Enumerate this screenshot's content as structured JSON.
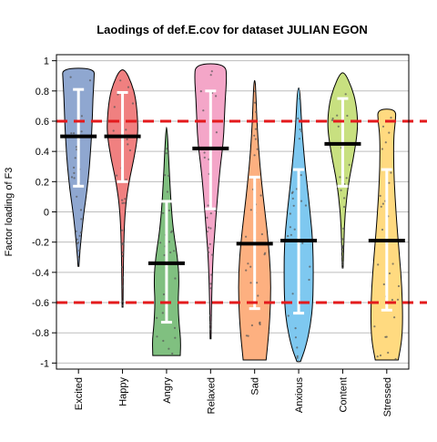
{
  "chart_data": {
    "type": "violin",
    "title": "Laodings of def.E.cov for dataset JULIAN EGON",
    "xlabel": "",
    "ylabel": "Factor loading of F3",
    "ylim": [
      -1.04,
      1.04
    ],
    "yticks": [
      1,
      0.8,
      0.6,
      0.4,
      0.2,
      0,
      -0.2,
      -0.4,
      -0.6,
      -0.8,
      -1
    ],
    "reference_lines": [
      0.6,
      -0.6
    ],
    "reference_line_color": "#e31a1c",
    "grid": "horizontal",
    "categories": [
      "Excited",
      "Happy",
      "Angry",
      "Relaxed",
      "Sad",
      "Anxious",
      "Content",
      "Stressed"
    ],
    "series": [
      {
        "label": "Excited",
        "color": "#8FA7D0",
        "mean": 0.5,
        "sd_low": 0.17,
        "sd_high": 0.81,
        "min": -0.36,
        "max": 0.95,
        "profile": [
          [
            -0.36,
            0.02
          ],
          [
            -0.25,
            0.07
          ],
          [
            -0.12,
            0.15
          ],
          [
            0.0,
            0.24
          ],
          [
            0.15,
            0.38
          ],
          [
            0.3,
            0.48
          ],
          [
            0.45,
            0.55
          ],
          [
            0.6,
            0.6
          ],
          [
            0.75,
            0.63
          ],
          [
            0.88,
            0.68
          ],
          [
            0.95,
            0.7
          ]
        ]
      },
      {
        "label": "Happy",
        "color": "#F08080",
        "mean": 0.5,
        "sd_low": 0.2,
        "sd_high": 0.79,
        "min": -0.63,
        "max": 0.94,
        "profile": [
          [
            -0.63,
            0.02
          ],
          [
            -0.3,
            0.04
          ],
          [
            0.0,
            0.1
          ],
          [
            0.2,
            0.28
          ],
          [
            0.35,
            0.5
          ],
          [
            0.5,
            0.66
          ],
          [
            0.6,
            0.67
          ],
          [
            0.75,
            0.58
          ],
          [
            0.85,
            0.4
          ],
          [
            0.94,
            0.12
          ]
        ]
      },
      {
        "label": "Angry",
        "color": "#80C080",
        "mean": -0.34,
        "sd_low": -0.73,
        "sd_high": 0.07,
        "min": -0.95,
        "max": 0.56,
        "profile": [
          [
            -0.95,
            0.6
          ],
          [
            -0.85,
            0.62
          ],
          [
            -0.75,
            0.55
          ],
          [
            -0.6,
            0.5
          ],
          [
            -0.45,
            0.55
          ],
          [
            -0.3,
            0.48
          ],
          [
            -0.15,
            0.32
          ],
          [
            0.0,
            0.22
          ],
          [
            0.2,
            0.14
          ],
          [
            0.4,
            0.08
          ],
          [
            0.56,
            0.02
          ]
        ]
      },
      {
        "label": "Relaxed",
        "color": "#F4A6C8",
        "mean": 0.42,
        "sd_low": 0.02,
        "sd_high": 0.8,
        "min": -0.84,
        "max": 0.98,
        "profile": [
          [
            -0.84,
            0.02
          ],
          [
            -0.6,
            0.04
          ],
          [
            -0.3,
            0.1
          ],
          [
            -0.1,
            0.2
          ],
          [
            0.1,
            0.3
          ],
          [
            0.3,
            0.42
          ],
          [
            0.45,
            0.55
          ],
          [
            0.6,
            0.6
          ],
          [
            0.75,
            0.64
          ],
          [
            0.88,
            0.7
          ],
          [
            0.98,
            0.66
          ]
        ]
      },
      {
        "label": "Sad",
        "color": "#FDB080",
        "mean": -0.21,
        "sd_low": -0.64,
        "sd_high": 0.23,
        "min": -0.98,
        "max": 0.87,
        "profile": [
          [
            -0.98,
            0.5
          ],
          [
            -0.8,
            0.62
          ],
          [
            -0.6,
            0.7
          ],
          [
            -0.4,
            0.7
          ],
          [
            -0.2,
            0.6
          ],
          [
            0.0,
            0.45
          ],
          [
            0.2,
            0.3
          ],
          [
            0.4,
            0.18
          ],
          [
            0.6,
            0.1
          ],
          [
            0.8,
            0.05
          ],
          [
            0.87,
            0.02
          ]
        ]
      },
      {
        "label": "Anxious",
        "color": "#7EC8F0",
        "mean": -0.19,
        "sd_low": -0.67,
        "sd_high": 0.28,
        "min": -0.99,
        "max": 0.82,
        "profile": [
          [
            -0.99,
            0.08
          ],
          [
            -0.9,
            0.3
          ],
          [
            -0.75,
            0.52
          ],
          [
            -0.6,
            0.62
          ],
          [
            -0.4,
            0.64
          ],
          [
            -0.2,
            0.62
          ],
          [
            0.0,
            0.5
          ],
          [
            0.2,
            0.35
          ],
          [
            0.4,
            0.22
          ],
          [
            0.6,
            0.12
          ],
          [
            0.82,
            0.05
          ]
        ]
      },
      {
        "label": "Content",
        "color": "#C8E080",
        "mean": 0.45,
        "sd_low": 0.17,
        "sd_high": 0.75,
        "min": -0.37,
        "max": 0.92,
        "profile": [
          [
            -0.37,
            0.02
          ],
          [
            -0.2,
            0.05
          ],
          [
            0.0,
            0.1
          ],
          [
            0.2,
            0.26
          ],
          [
            0.35,
            0.46
          ],
          [
            0.5,
            0.62
          ],
          [
            0.6,
            0.66
          ],
          [
            0.72,
            0.58
          ],
          [
            0.82,
            0.4
          ],
          [
            0.92,
            0.1
          ]
        ]
      },
      {
        "label": "Stressed",
        "color": "#FFDA80",
        "mean": -0.19,
        "sd_low": -0.65,
        "sd_high": 0.28,
        "min": -0.98,
        "max": 0.68,
        "profile": [
          [
            -0.98,
            0.5
          ],
          [
            -0.85,
            0.66
          ],
          [
            -0.7,
            0.7
          ],
          [
            -0.5,
            0.66
          ],
          [
            -0.3,
            0.56
          ],
          [
            -0.1,
            0.45
          ],
          [
            0.1,
            0.36
          ],
          [
            0.3,
            0.3
          ],
          [
            0.5,
            0.3
          ],
          [
            0.6,
            0.38
          ],
          [
            0.68,
            0.4
          ]
        ]
      }
    ]
  }
}
